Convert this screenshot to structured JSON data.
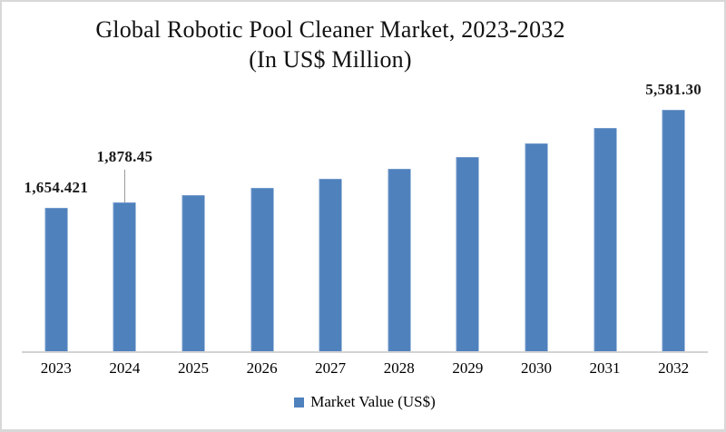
{
  "chart_data": {
    "type": "bar",
    "title": "Global Robotic Pool Cleaner Market, 2023-2032",
    "subtitle": "(In US$ Million)",
    "xlabel": "",
    "ylabel": "",
    "categories": [
      "2023",
      "2024",
      "2025",
      "2026",
      "2027",
      "2028",
      "2029",
      "2030",
      "2031",
      "2032"
    ],
    "series": [
      {
        "name": "Market Value (US$)",
        "values": [
          1654.421,
          1878.45,
          2152.3,
          2466.1,
          2825.7,
          3237.7,
          3709.8,
          4250.7,
          4870.5,
          5581.3
        ]
      }
    ],
    "labeled_points": [
      {
        "category": "2023",
        "label": "1,654.421",
        "leader_line": false
      },
      {
        "category": "2024",
        "label": "1,878.45",
        "leader_line": true
      },
      {
        "category": "2032",
        "label": "5,581.30",
        "leader_line": false
      }
    ],
    "ylim": [
      -4140,
      6290
    ],
    "grid": false,
    "legend_position": "bottom",
    "bar_color": "#4f81bd",
    "axis_line_color": "#d3d3d3",
    "leader_line_color": "#9a9a9a"
  },
  "legend": {
    "items": [
      {
        "label": "Market Value (US$)",
        "color": "#4f81bd"
      }
    ]
  }
}
